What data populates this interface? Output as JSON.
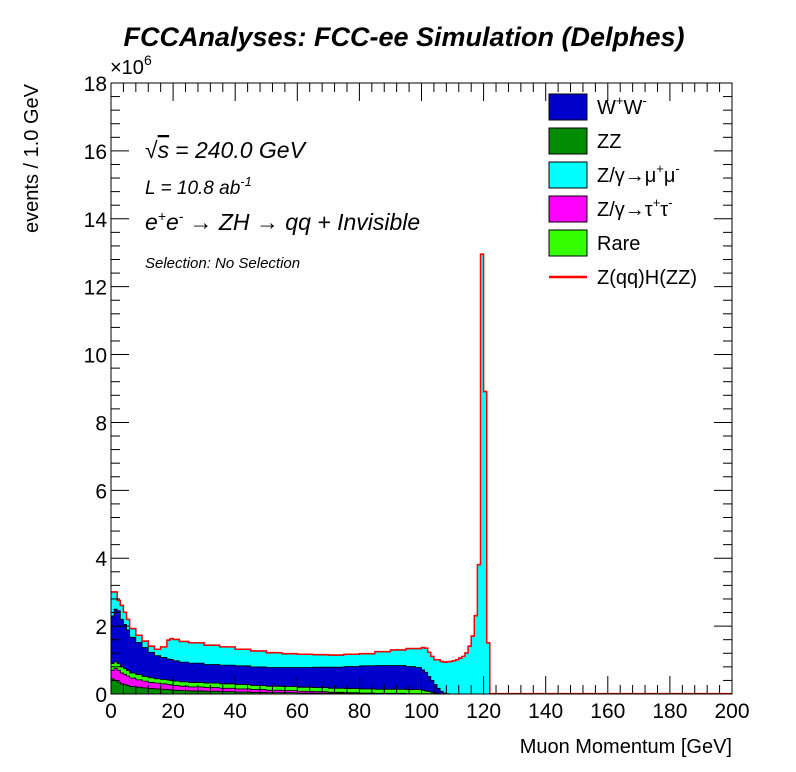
{
  "chart_data": {
    "type": "area",
    "title": "FCCAnalyses: FCC-ee Simulation (Delphes)",
    "xlabel": "Muon Momentum [GeV]",
    "ylabel": "events / 1.0 GeV",
    "y_exponent_label": "×10",
    "y_exponent_power": "6",
    "xlim": [
      0,
      200
    ],
    "ylim": [
      0,
      18
    ],
    "y_scale_factor": 1000000,
    "grid": false,
    "legend_placement": "top-right",
    "x_ticks": [
      "0",
      "20",
      "40",
      "60",
      "80",
      "100",
      "120",
      "140",
      "160",
      "180",
      "200"
    ],
    "y_ticks": [
      "0",
      "2",
      "4",
      "6",
      "8",
      "10",
      "12",
      "14",
      "16",
      "18"
    ],
    "annotations": {
      "sqrt_s": "= 240.0 GeV",
      "lumi": "L = 10.8 ab",
      "lumi_power": "-1",
      "process": "→ ZH → qq + Invisible",
      "selection": "Selection: No Selection"
    },
    "x": [
      1,
      2,
      3,
      4,
      5,
      6,
      8,
      10,
      12,
      14,
      16,
      18,
      19,
      20,
      22,
      25,
      30,
      35,
      40,
      45,
      50,
      55,
      60,
      65,
      70,
      75,
      80,
      85,
      90,
      95,
      98,
      100,
      101,
      102,
      103,
      104,
      105,
      106,
      107,
      108,
      109,
      110,
      111,
      112,
      113,
      114,
      115,
      116,
      117,
      118,
      119,
      120,
      121,
      122,
      123,
      124,
      125,
      150,
      175,
      200
    ],
    "series": [
      {
        "name": "ZZ",
        "color": "#008b00",
        "values": [
          0.45,
          0.4,
          0.35,
          0.3,
          0.28,
          0.25,
          0.22,
          0.2,
          0.18,
          0.16,
          0.15,
          0.14,
          0.13,
          0.12,
          0.11,
          0.1,
          0.09,
          0.08,
          0.07,
          0.06,
          0.05,
          0.04,
          0.04,
          0.03,
          0.03,
          0.02,
          0.02,
          0.02,
          0.01,
          0.01,
          0.01,
          0.01,
          0.01,
          0.01,
          0.01,
          0.01,
          0.01,
          0.01,
          0.0,
          0.0,
          0.0,
          0.0,
          0.0,
          0.0,
          0.0,
          0.0,
          0.0,
          0.0,
          0.0,
          0.0,
          0.0,
          0.0,
          0.0,
          0.0,
          0.0,
          0.0,
          0.0,
          0.0,
          0.0,
          0.0
        ]
      },
      {
        "name": "Z/γ→τ⁺τ⁻",
        "color": "#ff00ff",
        "values": [
          0.25,
          0.35,
          0.35,
          0.32,
          0.3,
          0.28,
          0.25,
          0.22,
          0.2,
          0.18,
          0.17,
          0.16,
          0.15,
          0.15,
          0.14,
          0.13,
          0.12,
          0.11,
          0.1,
          0.09,
          0.08,
          0.07,
          0.06,
          0.05,
          0.04,
          0.03,
          0.02,
          0.01,
          0.01,
          0.01,
          0.0,
          0.0,
          0.0,
          0.0,
          0.0,
          0.0,
          0.0,
          0.0,
          0.0,
          0.0,
          0.0,
          0.0,
          0.0,
          0.0,
          0.0,
          0.0,
          0.0,
          0.0,
          0.0,
          0.0,
          0.0,
          0.0,
          0.0,
          0.0,
          0.0,
          0.0,
          0.0,
          0.0,
          0.0,
          0.0
        ]
      },
      {
        "name": "Rare",
        "color": "#33ff00",
        "values": [
          0.2,
          0.2,
          0.2,
          0.18,
          0.17,
          0.16,
          0.15,
          0.15,
          0.14,
          0.14,
          0.13,
          0.13,
          0.13,
          0.13,
          0.13,
          0.13,
          0.13,
          0.13,
          0.13,
          0.13,
          0.12,
          0.12,
          0.12,
          0.12,
          0.12,
          0.12,
          0.12,
          0.12,
          0.12,
          0.12,
          0.12,
          0.12,
          0.1,
          0.08,
          0.06,
          0.04,
          0.02,
          0.01,
          0.0,
          0.0,
          0.0,
          0.0,
          0.0,
          0.0,
          0.0,
          0.0,
          0.0,
          0.0,
          0.0,
          0.0,
          0.0,
          0.0,
          0.0,
          0.0,
          0.0,
          0.0,
          0.0,
          0.0,
          0.0,
          0.0
        ]
      },
      {
        "name": "W⁺W⁻",
        "color": "#0000cc",
        "values": [
          1.4,
          1.55,
          1.55,
          1.4,
          1.3,
          1.2,
          1.05,
          0.95,
          0.85,
          0.75,
          0.68,
          0.65,
          0.62,
          0.62,
          0.6,
          0.58,
          0.57,
          0.55,
          0.55,
          0.55,
          0.55,
          0.55,
          0.56,
          0.58,
          0.6,
          0.62,
          0.65,
          0.68,
          0.7,
          0.7,
          0.68,
          0.65,
          0.6,
          0.55,
          0.45,
          0.35,
          0.25,
          0.15,
          0.08,
          0.03,
          0.01,
          0.0,
          0.0,
          0.0,
          0.0,
          0.0,
          0.0,
          0.0,
          0.0,
          0.0,
          0.0,
          0.0,
          0.0,
          0.0,
          0.0,
          0.0,
          0.0,
          0.0,
          0.0,
          0.0
        ]
      },
      {
        "name": "Z/γ→μ⁺μ⁻",
        "color": "#00ffff",
        "values": [
          0.7,
          0.5,
          0.3,
          0.4,
          0.35,
          0.3,
          0.25,
          0.2,
          0.18,
          0.17,
          0.18,
          0.3,
          0.55,
          0.6,
          0.62,
          0.6,
          0.59,
          0.56,
          0.53,
          0.48,
          0.46,
          0.43,
          0.4,
          0.38,
          0.36,
          0.35,
          0.35,
          0.35,
          0.4,
          0.45,
          0.52,
          0.55,
          0.65,
          0.7,
          0.7,
          0.7,
          0.72,
          0.83,
          0.87,
          0.9,
          0.93,
          0.95,
          0.97,
          1.0,
          1.05,
          1.1,
          1.2,
          1.4,
          1.7,
          2.3,
          3.8,
          12.95,
          8.9,
          1.5,
          0.0,
          0.0,
          0.0,
          0.0,
          0.0,
          0.0
        ]
      },
      {
        "name": "Z(qq)H(ZZ)",
        "color": "#ff0000",
        "values": [
          0.01,
          0.01,
          0.01,
          0.01,
          0.01,
          0.01,
          0.01,
          0.01,
          0.01,
          0.01,
          0.01,
          0.01,
          0.01,
          0.01,
          0.01,
          0.01,
          0.01,
          0.01,
          0.01,
          0.01,
          0.01,
          0.01,
          0.01,
          0.01,
          0.01,
          0.01,
          0.01,
          0.01,
          0.01,
          0.01,
          0.01,
          0.01,
          0.01,
          0.01,
          0.01,
          0.01,
          0.01,
          0.01,
          0.01,
          0.01,
          0.01,
          0.01,
          0.01,
          0.01,
          0.01,
          0.01,
          0.01,
          0.01,
          0.01,
          0.01,
          0.01,
          0.01,
          0.01,
          0.01,
          0.01,
          0.01,
          0.01,
          0.01,
          0.01,
          0.01
        ]
      }
    ],
    "legend": [
      {
        "label": "W",
        "sup1": "+",
        "label2": "W",
        "sup2": "-",
        "color": "#0000cc",
        "kind": "box"
      },
      {
        "label": "ZZ",
        "sup1": "",
        "label2": "",
        "sup2": "",
        "color": "#008b00",
        "kind": "box"
      },
      {
        "label": "Z/γ→μ",
        "sup1": "+",
        "label2": "μ",
        "sup2": "-",
        "color": "#00ffff",
        "kind": "box"
      },
      {
        "label": "Z/γ→τ",
        "sup1": "+",
        "label2": "τ",
        "sup2": "-",
        "color": "#ff00ff",
        "kind": "box"
      },
      {
        "label": "Rare",
        "sup1": "",
        "label2": "",
        "sup2": "",
        "color": "#33ff00",
        "kind": "box"
      },
      {
        "label": "Z(qq)H(ZZ)",
        "sup1": "",
        "label2": "",
        "sup2": "",
        "color": "#ff0000",
        "kind": "line"
      }
    ]
  }
}
